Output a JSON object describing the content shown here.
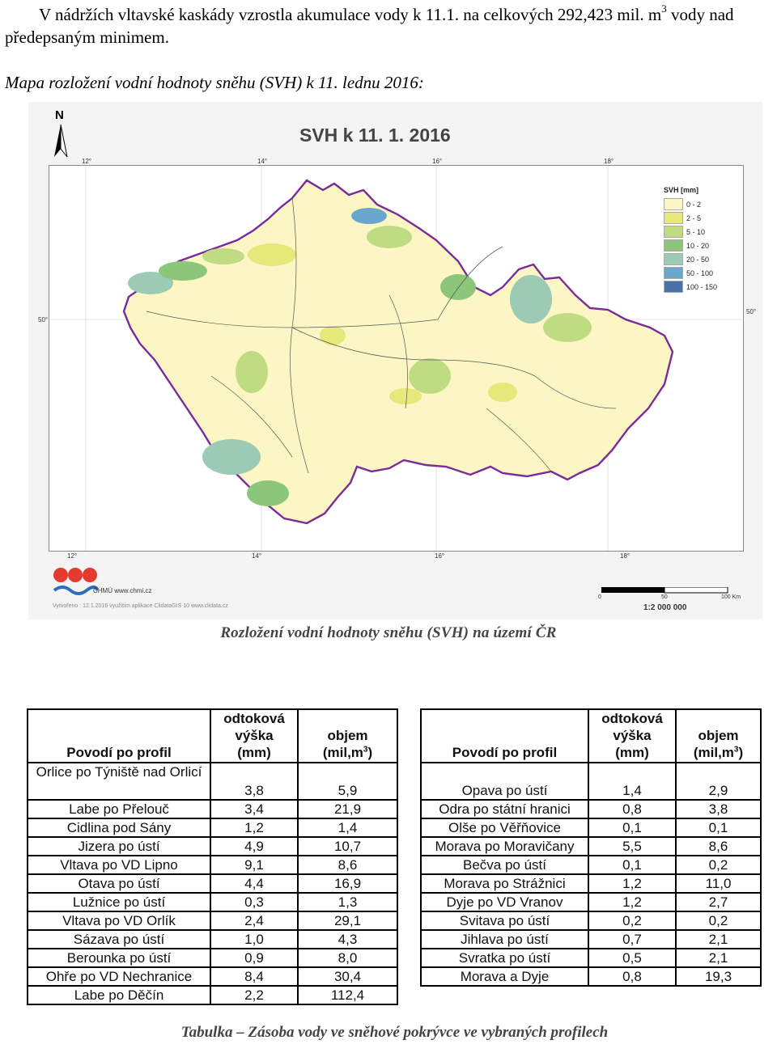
{
  "paragraph": {
    "text_before": "V nádržích vltavské kaskády vzrostla akumulace vody k 11.1. na celkových 292,423 mil. m",
    "superscript": "3",
    "text_after": " vody nad předepsaným minimem."
  },
  "subheading": "Mapa rozložení vodní hodnoty sněhu (SVH) k 11. lednu 2016:",
  "map": {
    "title": "SVH k 11. 1. 2016",
    "north_label": "N",
    "lon_ticks": [
      "12°",
      "14°",
      "16°",
      "18°"
    ],
    "lat_tick": "50°",
    "legend": {
      "title": "SVH [mm]",
      "items": [
        {
          "label": "0 - 2",
          "color": "#fbf6c4"
        },
        {
          "label": "2 - 5",
          "color": "#e6e87a"
        },
        {
          "label": "5 - 10",
          "color": "#c0dc82"
        },
        {
          "label": "10 - 20",
          "color": "#8cc67a"
        },
        {
          "label": "20 - 50",
          "color": "#9ccab4"
        },
        {
          "label": "50 - 100",
          "color": "#6ba6cc"
        },
        {
          "label": "100 - 150",
          "color": "#4a72a8"
        }
      ]
    },
    "logo_text": "ČHMÚ www.chmi.cz",
    "created_text": "Vytvořeno : 12.1.2016 využitím aplikace ClidataGIS 10 www.clidata.cz",
    "scale_ticks": [
      "0",
      "50",
      "100 Km"
    ],
    "scale_ratio": "1:2 000 000",
    "caption": "Rozložení vodní hodnoty sněhu (SVH) na území ČR"
  },
  "table_headers": {
    "col1": "Povodí po profil",
    "col2_lines": [
      "odtoková",
      "výška",
      "(mm)"
    ],
    "col3_lines": [
      "objem",
      "(mil,m"
    ],
    "col3_sup": "3",
    "col3_close": ")"
  },
  "left_table": [
    {
      "profil": "Orlice po Týništěnad Orlicí",
      "profil_display": "Orlice po Týniště nad Orlicí",
      "vyska": "3,8",
      "objem": "5,9"
    },
    {
      "profil_display": "Labe po Přelouč",
      "vyska": "3,4",
      "objem": "21,9"
    },
    {
      "profil_display": "Cidlina pod Sány",
      "vyska": "1,2",
      "objem": "1,4"
    },
    {
      "profil_display": "Jizera po ústí",
      "vyska": "4,9",
      "objem": "10,7"
    },
    {
      "profil_display": "Vltava po VD Lipno",
      "vyska": "9,1",
      "objem": "8,6"
    },
    {
      "profil_display": "Otava po ústí",
      "vyska": "4,4",
      "objem": "16,9"
    },
    {
      "profil_display": "Lužnice po ústí",
      "vyska": "0,3",
      "objem": "1,3"
    },
    {
      "profil_display": "Vltava po VD Orlík",
      "vyska": "2,4",
      "objem": "29,1"
    },
    {
      "profil_display": "Sázava po ústí",
      "vyska": "1,0",
      "objem": "4,3"
    },
    {
      "profil_display": "Berounka po ústí",
      "vyska": "0,9",
      "objem": "8,0"
    },
    {
      "profil_display": "Ohře po VD Nechranice",
      "vyska": "8,4",
      "objem": "30,4"
    },
    {
      "profil_display": "Labe po Děčín",
      "vyska": "2,2",
      "objem": "112,4"
    }
  ],
  "right_table": [
    {
      "profil_display": "Opava po ústí",
      "vyska": "1,4",
      "objem": "2,9"
    },
    {
      "profil_display": "Odra po státní hranici",
      "vyska": "0,8",
      "objem": "3,8"
    },
    {
      "profil_display": "Olše po Věřňovice",
      "vyska": "0,1",
      "objem": "0,1"
    },
    {
      "profil_display": "Morava po Moravičany",
      "vyska": "5,5",
      "objem": "8,6"
    },
    {
      "profil_display": "Bečva po ústí",
      "vyska": "0,1",
      "objem": "0,2"
    },
    {
      "profil_display": "Morava po Strážnici",
      "vyska": "1,2",
      "objem": "11,0"
    },
    {
      "profil_display": "Dyje po VD Vranov",
      "vyska": "1,2",
      "objem": "2,7"
    },
    {
      "profil_display": "Svitava po ústí",
      "vyska": "0,2",
      "objem": "0,2"
    },
    {
      "profil_display": "Jihlava po ústí",
      "vyska": "0,7",
      "objem": "2,1"
    },
    {
      "profil_display": "Svratka po ústí",
      "vyska": "0,5",
      "objem": "2,1"
    },
    {
      "profil_display": "Morava a Dyje",
      "vyska": "0,8",
      "objem": "19,3"
    }
  ],
  "table_caption": "Tabulka – Zásoba vody ve sněhové pokrývce ve vybraných profilech"
}
